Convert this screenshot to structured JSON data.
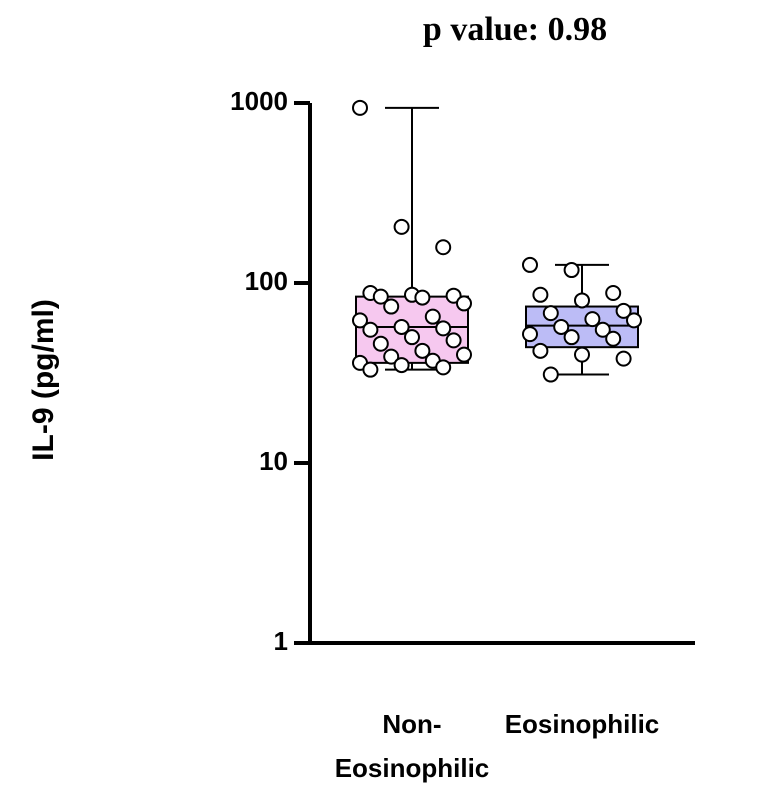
{
  "chart_data": {
    "type": "box",
    "title": "p value: 0.98",
    "y_label": "IL-9 (pg/ml)",
    "yscale": "log",
    "ylim": [
      1,
      1000
    ],
    "yticks": [
      1,
      10,
      100,
      1000
    ],
    "categories": [
      "Non-Eosinophilic",
      "Eosinophilic"
    ],
    "boxes": [
      {
        "color": "#f6c8ef",
        "min": 33,
        "q1": 36,
        "median": 57,
        "q3": 84,
        "max": 940,
        "points": [
          940,
          205,
          158,
          88,
          86,
          85,
          84,
          83,
          77,
          74,
          65,
          62,
          57,
          56,
          55,
          50,
          48,
          46,
          42,
          40,
          39,
          37,
          36,
          35,
          34,
          33
        ]
      },
      {
        "color": "#bcbcf6",
        "min": 31,
        "q1": 44,
        "median": 58,
        "q3": 74,
        "max": 126,
        "points": [
          126,
          118,
          88,
          86,
          80,
          70,
          68,
          63,
          62,
          57,
          55,
          52,
          50,
          49,
          42,
          40,
          38,
          31
        ]
      }
    ]
  }
}
